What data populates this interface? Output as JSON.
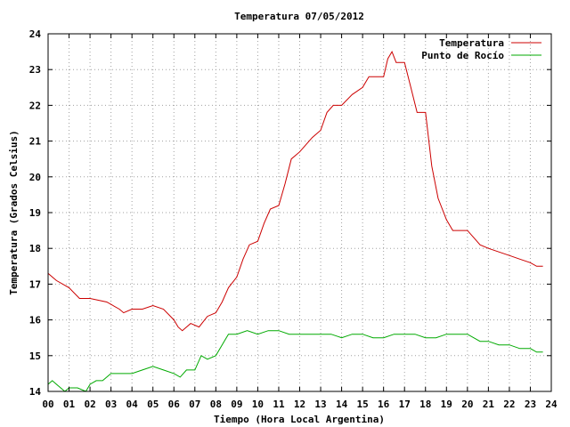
{
  "chart_data": {
    "type": "line",
    "title": "Temperatura 07/05/2012",
    "xlabel": "Tiempo (Hora Local Argentina)",
    "ylabel": "Temperatura (Grados Celsius)",
    "xlim": [
      0,
      24
    ],
    "ylim": [
      14,
      24
    ],
    "grid": true,
    "legend_position": "top-right",
    "x_tick_labels": [
      "00",
      "01",
      "02",
      "03",
      "04",
      "05",
      "06",
      "07",
      "08",
      "09",
      "10",
      "11",
      "12",
      "13",
      "14",
      "15",
      "16",
      "17",
      "18",
      "19",
      "20",
      "21",
      "22",
      "23",
      "24"
    ],
    "y_tick_labels": [
      "14",
      "15",
      "16",
      "17",
      "18",
      "19",
      "20",
      "21",
      "22",
      "23",
      "24"
    ],
    "series": [
      {
        "name": "Temperatura",
        "color": "#cc0000",
        "x": [
          0,
          0.2,
          0.4,
          1,
          1.5,
          2,
          2.8,
          3.4,
          3.6,
          4,
          4.5,
          5,
          5.5,
          6,
          6.2,
          6.4,
          6.8,
          7.2,
          7.6,
          8,
          8.3,
          8.6,
          9,
          9.3,
          9.6,
          10,
          10.3,
          10.6,
          11,
          11.3,
          11.6,
          12,
          12.3,
          12.6,
          13,
          13.3,
          13.6,
          14,
          14.5,
          15,
          15.3,
          15.6,
          16,
          16.2,
          16.4,
          16.6,
          17,
          17.3,
          17.6,
          18,
          18.3,
          18.6,
          19,
          19.3,
          19.6,
          20,
          20.3,
          20.6,
          21,
          21.5,
          22,
          22.5,
          23,
          23.3,
          23.6
        ],
        "y": [
          17.3,
          17.2,
          17.1,
          16.9,
          16.6,
          16.6,
          16.5,
          16.3,
          16.2,
          16.3,
          16.3,
          16.4,
          16.3,
          16.0,
          15.8,
          15.7,
          15.9,
          15.8,
          16.1,
          16.2,
          16.5,
          16.9,
          17.2,
          17.7,
          18.1,
          18.2,
          18.7,
          19.1,
          19.2,
          19.8,
          20.5,
          20.7,
          20.9,
          21.1,
          21.3,
          21.8,
          22.0,
          22.0,
          22.3,
          22.5,
          22.8,
          22.8,
          22.8,
          23.3,
          23.5,
          23.2,
          23.2,
          22.5,
          21.8,
          21.8,
          20.3,
          19.4,
          18.8,
          18.5,
          18.5,
          18.5,
          18.3,
          18.1,
          18.0,
          17.9,
          17.8,
          17.7,
          17.6,
          17.5,
          17.5
        ]
      },
      {
        "name": "Punto de Rocío",
        "color": "#00aa00",
        "x": [
          0,
          0.2,
          0.4,
          0.6,
          0.8,
          1,
          1.4,
          1.8,
          2,
          2.3,
          2.6,
          3,
          3.5,
          4,
          4.5,
          5,
          5.5,
          6,
          6.3,
          6.6,
          7,
          7.3,
          7.6,
          8,
          8.3,
          8.6,
          9,
          9.5,
          10,
          10.5,
          11,
          11.5,
          12,
          12.5,
          13,
          13.5,
          14,
          14.5,
          15,
          15.5,
          16,
          16.5,
          17,
          17.5,
          18,
          18.5,
          19,
          19.5,
          20,
          20.3,
          20.6,
          21,
          21.5,
          22,
          22.5,
          23,
          23.3,
          23.6
        ],
        "y": [
          14.2,
          14.3,
          14.2,
          14.1,
          14.0,
          14.1,
          14.1,
          14.0,
          14.2,
          14.3,
          14.3,
          14.5,
          14.5,
          14.5,
          14.6,
          14.7,
          14.6,
          14.5,
          14.4,
          14.6,
          14.6,
          15.0,
          14.9,
          15.0,
          15.3,
          15.6,
          15.6,
          15.7,
          15.6,
          15.7,
          15.7,
          15.6,
          15.6,
          15.6,
          15.6,
          15.6,
          15.5,
          15.6,
          15.6,
          15.5,
          15.5,
          15.6,
          15.6,
          15.6,
          15.5,
          15.5,
          15.6,
          15.6,
          15.6,
          15.5,
          15.4,
          15.4,
          15.3,
          15.3,
          15.2,
          15.2,
          15.1,
          15.1
        ]
      }
    ]
  }
}
